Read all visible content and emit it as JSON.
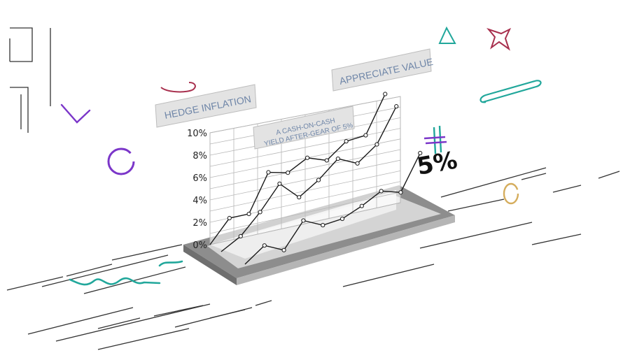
{
  "signs": {
    "hedge": "HEDGE INFLATION",
    "appreciate": "APPRECIATE VALUE",
    "cash_line1": "A CASH-ON-CASH",
    "cash_line2": "YIELD AFTER-GEAR OF 5%"
  },
  "callout": "5%",
  "chart_data": {
    "type": "line",
    "yticks": [
      "10%",
      "8%",
      "6%",
      "4%",
      "2%",
      "0%"
    ],
    "ylim": [
      0,
      10
    ],
    "series": [
      {
        "values": [
          0,
          2,
          2,
          5.4,
          5,
          6,
          5.4,
          6.8,
          7,
          10.5
        ]
      },
      {
        "values": [
          0,
          1,
          2.8,
          5,
          3.4,
          4.6,
          6.2,
          5.4,
          6.8,
          10
        ]
      },
      {
        "values": [
          0,
          1.3,
          0.5,
          2.8,
          2,
          2.2,
          3,
          4,
          3.5,
          6.8
        ]
      }
    ]
  },
  "colors": {
    "teal": "#21a79b",
    "purple": "#7b36c9",
    "crimson": "#a8304e",
    "gold": "#d5ad5d",
    "sign_fill": "#e3e3e3",
    "sign_text": "#6f86a8"
  },
  "icons": [
    "circle-outline",
    "paperclip",
    "triangle-outline",
    "star-outline",
    "hash-sign",
    "squiggle"
  ]
}
